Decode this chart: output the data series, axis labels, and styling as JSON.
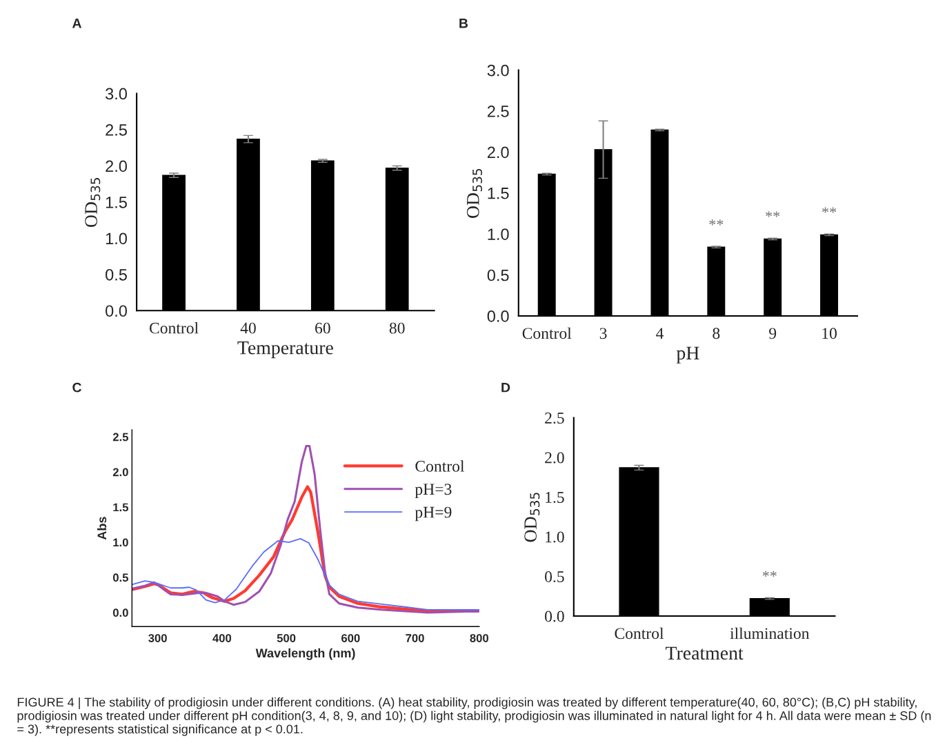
{
  "chart_data": [
    {
      "type": "bar",
      "title": "A",
      "xlabel": "Temperature",
      "ylabel": "OD$_{535}$",
      "categories": [
        "Control",
        "40",
        "60",
        "80"
      ],
      "series": [
        {
          "color": "#000000",
          "values": [
            1.87,
            2.37,
            2.07,
            1.97
          ],
          "errors": [
            0.03,
            0.05,
            0.02,
            0.03
          ]
        }
      ],
      "ylim": [
        0,
        3
      ],
      "yticks": [
        {
          "value": 0,
          "label": "0.0"
        },
        {
          "value": 0.5,
          "label": "0.5"
        },
        {
          "value": 1,
          "label": "1.0"
        },
        {
          "value": 1.5,
          "label": "1.5"
        },
        {
          "value": 2,
          "label": "2.0"
        },
        {
          "value": 2.5,
          "label": "2.5"
        },
        {
          "value": 3,
          "label": "3.0"
        }
      ],
      "grid": false,
      "legend": false
    },
    {
      "type": "bar",
      "title": "B",
      "xlabel": "pH",
      "ylabel": "OD$_{535}$",
      "categories": [
        "Control",
        "3",
        "4",
        "8",
        "9",
        "10"
      ],
      "series": [
        {
          "color": "#000000",
          "values": [
            1.73,
            2.03,
            2.27,
            0.84,
            0.94,
            0.99
          ],
          "errors": [
            0.01,
            0.35,
            0.01,
            0.01,
            0.01,
            0.01
          ]
        }
      ],
      "ylim": [
        0,
        3
      ],
      "yticks": [
        {
          "value": 0,
          "label": "0.0"
        },
        {
          "value": 0.5,
          "label": "0.5"
        },
        {
          "value": 1,
          "label": "1.0"
        },
        {
          "value": 1.5,
          "label": "1.5"
        },
        {
          "value": 2,
          "label": "2.0"
        },
        {
          "value": 2.5,
          "label": "2.5"
        },
        {
          "value": 3,
          "label": "3.0"
        }
      ],
      "annotations": [
        "**",
        "**",
        "**"
      ],
      "grid": false,
      "legend": false
    },
    {
      "type": "line",
      "title": "C",
      "xlabel": "Wavelength (nm)",
      "ylabel": "Abs",
      "series": [
        {
          "name": "Control",
          "color": "#ff3b30",
          "x": [
            261,
            280,
            294.5,
            302,
            320,
            338,
            356,
            371,
            385,
            404,
            418,
            436,
            458,
            480,
            498,
            509,
            524,
            533,
            538,
            549,
            560,
            567,
            582,
            611,
            647,
            684,
            720,
            800
          ],
          "values": [
            0.33,
            0.37,
            0.41,
            0.39,
            0.28,
            0.26,
            0.3,
            0.28,
            0.21,
            0.16,
            0.2,
            0.31,
            0.53,
            0.79,
            1.15,
            1.32,
            1.64,
            1.79,
            1.71,
            1.15,
            0.53,
            0.36,
            0.23,
            0.13,
            0.08,
            0.05,
            0.02,
            0.02
          ]
        },
        {
          "name": "pH=3",
          "color": "#a050b0",
          "x": [
            261,
            280,
            294.5,
            309,
            320,
            338,
            364,
            375,
            393,
            404,
            418,
            436,
            458,
            476,
            491,
            502,
            513,
            524,
            531,
            536,
            544,
            553,
            560,
            567,
            582,
            611,
            647,
            720,
            800
          ],
          "values": [
            0.34,
            0.38,
            0.43,
            0.33,
            0.26,
            0.25,
            0.28,
            0.28,
            0.23,
            0.16,
            0.11,
            0.15,
            0.3,
            0.56,
            0.95,
            1.32,
            1.58,
            2.14,
            2.37,
            2.37,
            1.97,
            1.15,
            0.59,
            0.26,
            0.13,
            0.07,
            0.04,
            0.0,
            0.02
          ]
        },
        {
          "name": "pH=9",
          "color": "#5a6cff",
          "x": [
            261,
            280,
            294.5,
            320,
            338,
            349,
            360,
            375,
            389,
            404,
            422,
            447,
            465,
            487,
            504,
            522,
            535,
            549,
            560,
            567,
            582,
            611,
            647,
            684,
            720,
            800
          ],
          "values": [
            0.4,
            0.45,
            0.43,
            0.35,
            0.35,
            0.36,
            0.32,
            0.18,
            0.14,
            0.18,
            0.33,
            0.66,
            0.86,
            1.02,
            1.0,
            1.05,
            0.99,
            0.76,
            0.53,
            0.39,
            0.26,
            0.16,
            0.12,
            0.08,
            0.04,
            0.04
          ]
        }
      ],
      "xlim": [
        260,
        800
      ],
      "xticks": [
        300,
        400,
        500,
        600,
        700,
        800
      ],
      "ylim": [
        -0.2,
        2.6
      ],
      "yticks": [
        {
          "value": 0,
          "label": "0.0"
        },
        {
          "value": 0.5,
          "label": "0.5"
        },
        {
          "value": 1,
          "label": "1.0"
        },
        {
          "value": 1.5,
          "label": "1.5"
        },
        {
          "value": 2,
          "label": "2.0"
        },
        {
          "value": 2.5,
          "label": "2.5"
        }
      ],
      "annotations": [
        "FIGURE 4 | The stability of prodigiosin under different conditions. (A) heat stability, prodigiosin was treated by different temperature(40, 60, 80°C); (B,C) pH stability, prodigiosin was treated under different pH condition(3, 4, 8, 9, and 10); (D) light stability, prodigiosin was illuminated in natural light for 4 h. All data were mean ± SD (n = 3). **represents statistical significance at p < 0.01."
      ],
      "grid": false,
      "legend": "top right",
      "marker": "none",
      "line_style": "solid"
    },
    {
      "type": "bar",
      "title": "D",
      "xlabel": "Treatment",
      "ylabel": "OD$_{535}$",
      "categories": [
        "Control",
        "illumination"
      ],
      "series": [
        {
          "color": "#000000",
          "values": [
            1.87,
            0.22
          ],
          "errors": [
            0.03,
            0.01
          ]
        }
      ],
      "ylim": [
        0,
        2.5
      ],
      "yticks": [
        {
          "value": 0,
          "label": "0.0"
        },
        {
          "value": 0.5,
          "label": "0.5"
        },
        {
          "value": 1,
          "label": "1.0"
        },
        {
          "value": 1.5,
          "label": "1.5"
        },
        {
          "value": 2,
          "label": "2.0"
        },
        {
          "value": 2.5,
          "label": "2.5"
        }
      ],
      "annotations": [
        "**"
      ],
      "grid": false,
      "legend": false
    }
  ]
}
